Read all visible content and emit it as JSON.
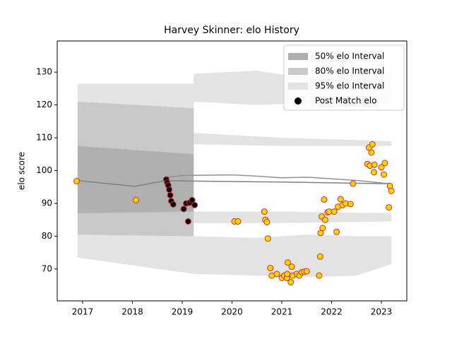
{
  "chart_data": {
    "type": "scatter",
    "title": "Harvey Skinner: elo History",
    "y_label": "elo score",
    "xlim": [
      2016.49,
      2023.51
    ],
    "ylim": [
      60.3,
      139.5
    ],
    "xticks": [
      2017,
      2018,
      2019,
      2020,
      2021,
      2022,
      2023
    ],
    "yticks": [
      70,
      80,
      90,
      100,
      110,
      120,
      130
    ],
    "legend": "upper right",
    "bands": [
      {
        "name": "95% elo Interval",
        "color": "#e3e3e3",
        "regions": [
          {
            "x": [
              2016.9,
              2019.23
            ],
            "lower": [
              73.5,
              68.5
            ],
            "upper": [
              126.5,
              126.5
            ]
          },
          {
            "x": [
              2019.23,
              2020.5,
              2021.5,
              2022.5,
              2023.2
            ],
            "lower": [
              121,
              120,
              120.5,
              120,
              120.5
            ],
            "upper": [
              129.5,
              130.5,
              128,
              131,
              130
            ]
          },
          {
            "x": [
              2019.23,
              2021,
              2023.2
            ],
            "lower": [
              108,
              107.5,
              107.5
            ],
            "upper": [
              111.5,
              110,
              109
            ]
          },
          {
            "x": [
              2019.23,
              2021,
              2023.2
            ],
            "lower": [
              84,
              84,
              84.5
            ],
            "upper": [
              87.5,
              87.5,
              87
            ]
          },
          {
            "x": [
              2019.23,
              2020.5,
              2021.5,
              2022.5,
              2023.2
            ],
            "lower": [
              68.5,
              68,
              67.5,
              68,
              71.5
            ],
            "upper": [
              80,
              79.5,
              80.5,
              80,
              80
            ]
          }
        ]
      },
      {
        "name": "80% elo Interval",
        "color": "#c8c8c8",
        "regions": [
          {
            "x": [
              2016.9,
              2019.23
            ],
            "lower": [
              80.5,
              80
            ],
            "upper": [
              121,
              119
            ]
          }
        ]
      },
      {
        "name": "50% elo Interval",
        "color": "#b0b0b0",
        "regions": [
          {
            "x": [
              2016.9,
              2019.23
            ],
            "lower": [
              87,
              87.5
            ],
            "upper": [
              107.5,
              105
            ]
          }
        ]
      }
    ],
    "lines": [
      {
        "color": "#808080",
        "x": [
          2016.88,
          2018.05,
          2018.68,
          2019.2,
          2021,
          2023.15
        ],
        "values": [
          97,
          95.2,
          97,
          96.8,
          96.5,
          96
        ]
      },
      {
        "color": "#909090",
        "x": [
          2018.7,
          2019.0,
          2020.0,
          2020.5,
          2021,
          2021.5,
          2022,
          2022.5,
          2023.15
        ],
        "values": [
          98,
          98.5,
          98.7,
          98.3,
          97.8,
          98,
          97.5,
          97,
          96
        ]
      }
    ],
    "scatter": {
      "name": "Post Match elo",
      "edgecolor": "#d03030",
      "groups": [
        {
          "color": "#000000",
          "x": [
            2018.68,
            2018.7,
            2018.72,
            2018.74,
            2018.76,
            2018.78,
            2018.82,
            2019.03,
            2019.08,
            2019.12,
            2019.15,
            2019.2,
            2019.25
          ],
          "values": [
            97.3,
            96.3,
            95.5,
            94.2,
            92.5,
            90.7,
            89.7,
            88.3,
            90,
            84.5,
            90.2,
            91,
            89.5
          ]
        },
        {
          "color": "#ffd700",
          "x": [
            2016.88,
            2018.07,
            2020.05,
            2020.12,
            2020.65,
            2020.67,
            2020.7,
            2020.72,
            2020.77,
            2020.8,
            2020.9,
            2021.0,
            2021.05,
            2021.1,
            2021.11,
            2021.12,
            2021.18,
            2021.2,
            2021.22,
            2021.3,
            2021.35,
            2021.4,
            2021.45,
            2021.5,
            2021.75,
            2021.77,
            2021.78,
            2021.8,
            2021.82,
            2021.85,
            2021.87,
            2021.92,
            2021.95,
            2022.05,
            2022.1,
            2022.13,
            2022.18,
            2022.22,
            2022.28,
            2022.38,
            2022.43,
            2022.72,
            2022.75,
            2022.77,
            2022.8,
            2022.82,
            2022.85,
            2022.86,
            2023.0,
            2023.05,
            2023.07,
            2023.15,
            2023.17,
            2023.2
          ],
          "values": [
            96.8,
            91,
            84.5,
            84.5,
            87.5,
            85,
            84.3,
            79.3,
            70.3,
            68,
            68.5,
            67.3,
            68,
            67.3,
            68.5,
            72,
            66,
            70.7,
            68,
            68.5,
            68,
            69,
            69.2,
            69.3,
            68,
            73.8,
            81,
            86,
            82.5,
            91.2,
            85,
            87.3,
            87.5,
            87.5,
            81.3,
            89,
            91.3,
            89.5,
            90,
            89.8,
            96,
            102,
            107,
            101.5,
            105.5,
            108,
            99.5,
            101.8,
            101,
            98.8,
            102.3,
            88.8,
            95.3,
            93.8
          ]
        }
      ]
    }
  }
}
